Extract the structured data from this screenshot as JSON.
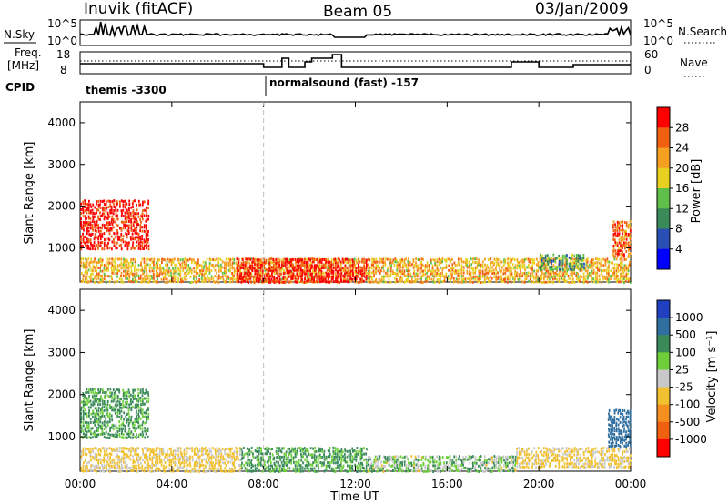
{
  "header": {
    "station": "Inuvik (fitACF)",
    "beam": "Beam 05",
    "date": "03/Jan/2009"
  },
  "summary_panels": {
    "nsky_label": "N.Sky",
    "nsky_ticks": [
      "10^5",
      "10^0"
    ],
    "nsearch_label": "N.Search",
    "nsearch_ticks": [
      "10^5",
      "10^0"
    ],
    "freq_label": "Freq.",
    "freq_unit": "[MHz]",
    "freq_ticks": [
      "18",
      "8"
    ],
    "nave_label": "Nave",
    "nave_ticks": [
      "60",
      "0"
    ],
    "cpid_label": "CPID",
    "cpid_segments": [
      {
        "label": "themis -3300",
        "start_hour": 0
      },
      {
        "label": "normalsound (fast) -157",
        "start_hour": 8.0
      }
    ]
  },
  "colors": {
    "power_scale": [
      "#0000ff",
      "#2a4fb3",
      "#3a8a5a",
      "#5fbf4a",
      "#e8d020",
      "#f5a020",
      "#f06010",
      "#ff0000"
    ],
    "velocity_scale": [
      "#2040c0",
      "#2f6f9f",
      "#3a8a5a",
      "#6fcf3a",
      "#c8c8c8",
      "#f0c030",
      "#f59020",
      "#f06010",
      "#ff0000"
    ]
  },
  "chart_data": [
    {
      "type": "heatmap",
      "panel": "power",
      "ylabel": "Slant Range [km]",
      "xlabel": "Time UT",
      "x_ticks": [
        "00:00",
        "04:00",
        "08:00",
        "12:00",
        "16:00",
        "20:00",
        "00:00"
      ],
      "x_range_hours": [
        0,
        24
      ],
      "ylim": [
        180,
        4500
      ],
      "y_ticks": [
        "1000",
        "2000",
        "3000",
        "4000"
      ],
      "colorbar_label": "Power [dB]",
      "colorbar_ticks": [
        "4",
        "8",
        "12",
        "16",
        "20",
        "24",
        "28"
      ],
      "scatter_regions": [
        {
          "t0": 0.0,
          "t1": 3.0,
          "r0": 1000,
          "r1": 2200,
          "value": 28
        },
        {
          "t0": 0.0,
          "t1": 24.0,
          "r0": 200,
          "r1": 800,
          "value": 20
        },
        {
          "t0": 6.8,
          "t1": 12.5,
          "r0": 200,
          "r1": 800,
          "value": 28
        },
        {
          "t0": 20.0,
          "t1": 22.0,
          "r0": 500,
          "r1": 900,
          "value": 12
        },
        {
          "t0": 23.2,
          "t1": 24.0,
          "r0": 800,
          "r1": 1700,
          "value": 24
        }
      ]
    },
    {
      "type": "heatmap",
      "panel": "velocity",
      "ylabel": "Slant Range [km]",
      "xlabel": "Time UT",
      "x_ticks": [
        "00:00",
        "04:00",
        "08:00",
        "12:00",
        "16:00",
        "20:00",
        "00:00"
      ],
      "x_range_hours": [
        0,
        24
      ],
      "ylim": [
        180,
        4500
      ],
      "y_ticks": [
        "1000",
        "2000",
        "3000",
        "4000"
      ],
      "colorbar_label": "Velocity [m s⁻¹]",
      "colorbar_ticks": [
        "1000",
        "500",
        "100",
        "25",
        "-25",
        "-100",
        "-500",
        "-1000"
      ],
      "scatter_regions": [
        {
          "t0": 0.0,
          "t1": 3.0,
          "r0": 1000,
          "r1": 2200,
          "value": 100
        },
        {
          "t0": 0.0,
          "t1": 7.0,
          "r0": 200,
          "r1": 800,
          "value": -100
        },
        {
          "t0": 7.0,
          "t1": 12.5,
          "r0": 200,
          "r1": 800,
          "value": 100
        },
        {
          "t0": 12.5,
          "t1": 19.0,
          "r0": 200,
          "r1": 600,
          "value": 25
        },
        {
          "t0": 19.0,
          "t1": 24.0,
          "r0": 300,
          "r1": 800,
          "value": -100
        },
        {
          "t0": 23.0,
          "t1": 24.0,
          "r0": 800,
          "r1": 1700,
          "value": 500
        }
      ]
    }
  ]
}
